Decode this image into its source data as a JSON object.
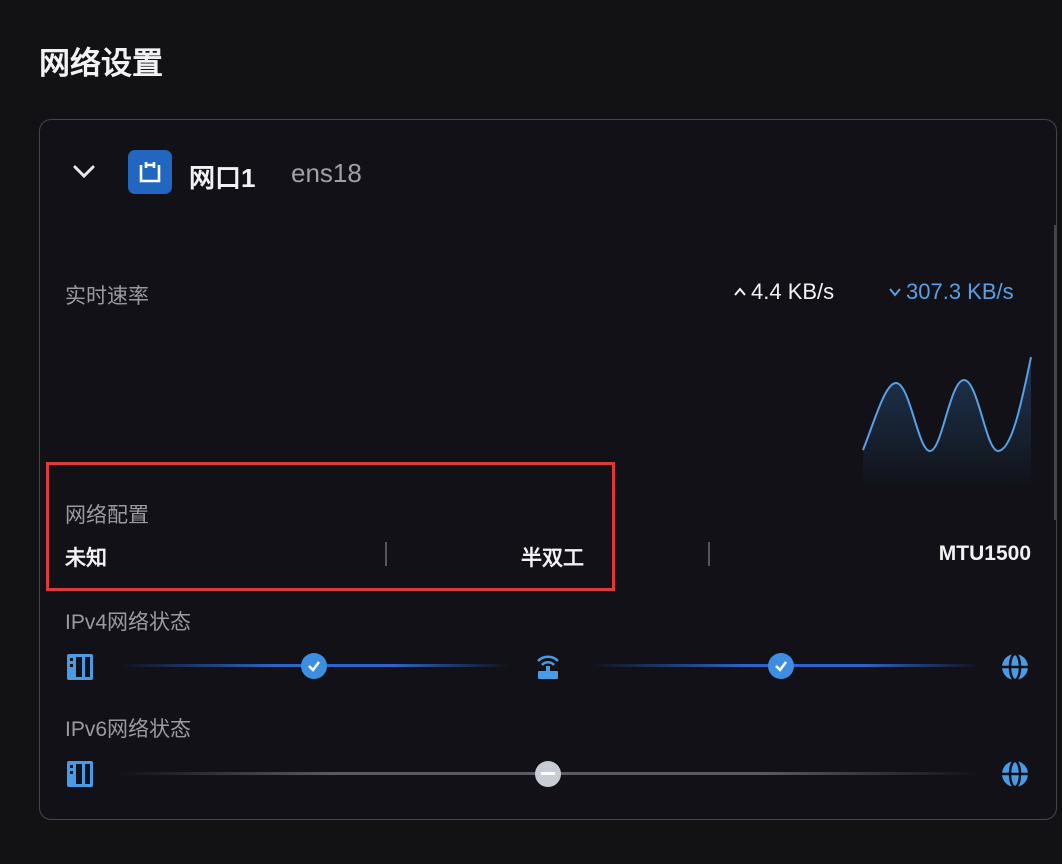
{
  "page_title": "网络设置",
  "interface": {
    "name": "网口1",
    "device": "ens18",
    "expanded": true,
    "icon": "ethernet-port-icon"
  },
  "speed": {
    "label": "实时速率",
    "upload": "4.4 KB/s",
    "download": "307.3 KB/s",
    "download_color": "#5aa0e6"
  },
  "config": {
    "label": "网络配置",
    "speed": "未知",
    "duplex": "半双工",
    "mtu": "MTU1500"
  },
  "ipv4": {
    "label": "IPv4网络状态",
    "steps": [
      "server-icon",
      "check-icon",
      "router-icon",
      "check-icon",
      "globe-icon"
    ],
    "status": "connected"
  },
  "ipv6": {
    "label": "IPv6网络状态",
    "steps": [
      "server-icon",
      "minus-icon",
      "globe-icon"
    ],
    "status": "not-connected"
  },
  "colors": {
    "accent": "#3d8ee0",
    "highlight_box": "#e0393a"
  }
}
